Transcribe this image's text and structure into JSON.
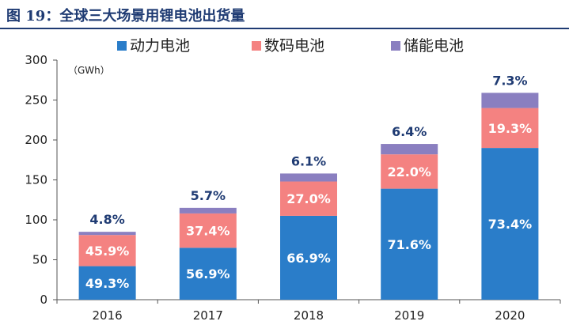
{
  "figure": {
    "title": "图 19：全球三大场景用锂电池出货量",
    "unit": "（GWh）"
  },
  "chart_data": {
    "type": "bar",
    "stacked": true,
    "categories": [
      "2016",
      "2017",
      "2018",
      "2019",
      "2020"
    ],
    "ylim": [
      0,
      300
    ],
    "yticks": [
      0,
      50,
      100,
      150,
      200,
      250,
      300
    ],
    "ylabel": "（GWh）",
    "grid": false,
    "legend_position": "top",
    "series": [
      {
        "name": "动力电池",
        "color": "#2a7dc9",
        "values": [
          42,
          65,
          105,
          139,
          190
        ],
        "labels": [
          "49.3%",
          "56.9%",
          "66.9%",
          "71.6%",
          "73.4%"
        ],
        "label_color": "#ffffff"
      },
      {
        "name": "数码电池",
        "color": "#f48281",
        "values": [
          39,
          43,
          43,
          43,
          50
        ],
        "labels": [
          "45.9%",
          "37.4%",
          "27.0%",
          "22.0%",
          "19.3%"
        ],
        "label_color": "#ffffff"
      },
      {
        "name": "储能电池",
        "color": "#8a7fc0",
        "values": [
          4,
          7,
          10,
          13,
          19
        ],
        "labels": [
          "4.8%",
          "5.7%",
          "6.1%",
          "6.4%",
          "7.3%"
        ],
        "label_color": "#1f3b73"
      }
    ]
  }
}
